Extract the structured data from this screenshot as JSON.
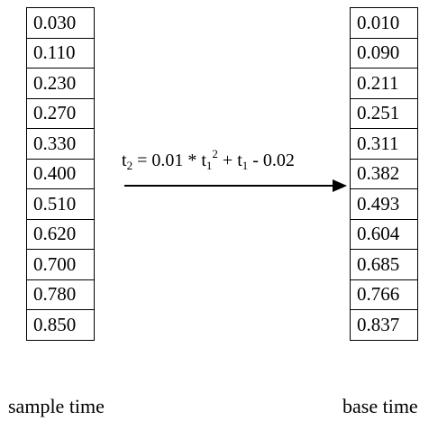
{
  "sample_time": {
    "caption": "sample time",
    "values": [
      "0.030",
      "0.110",
      "0.230",
      "0.270",
      "0.330",
      "0.400",
      "0.510",
      "0.620",
      "0.700",
      "0.780",
      "0.850"
    ]
  },
  "base_time": {
    "caption": "base time",
    "values": [
      "0.010",
      "0.090",
      "0.211",
      "0.251",
      "0.311",
      "0.382",
      "0.493",
      "0.604",
      "0.685",
      "0.766",
      "0.837"
    ]
  },
  "formula": {
    "t2_letter": "t",
    "t2_sub": "2",
    "part1": " = 0.01 * ",
    "t1_letter": "t",
    "t1_sub": "1",
    "t1_sup": "2",
    "part2": " + ",
    "t1b_letter": "t",
    "t1b_sub": "1",
    "part3": " - 0.02"
  }
}
